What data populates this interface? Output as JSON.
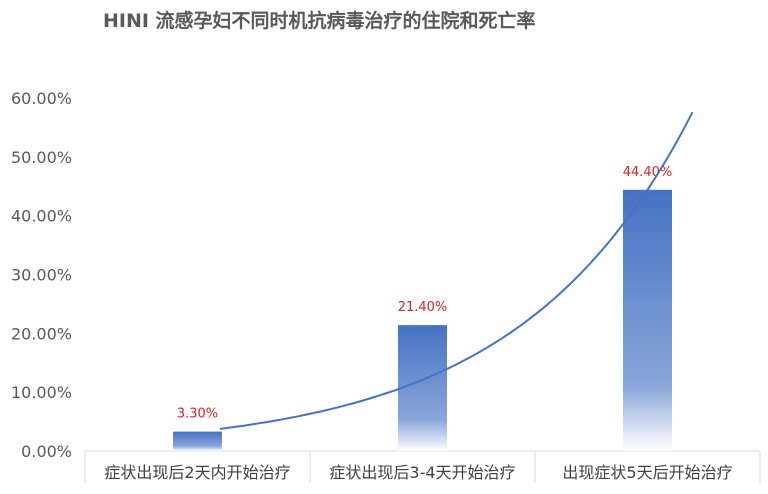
{
  "chart_data": {
    "type": "bar",
    "title": "HINI 流感孕妇不同时机抗病毒治疗的住院和死亡率",
    "categories": [
      "症状出现后2天内开始治疗",
      "症状出现后3-4天开始治疗",
      "出现症状5天后开始治疗"
    ],
    "values": [
      3.3,
      21.4,
      44.4
    ],
    "data_labels": [
      "3.30%",
      "21.40%",
      "44.40%"
    ],
    "ylim": [
      0,
      60
    ],
    "yticks": [
      "0.00%",
      "10.00%",
      "20.00%",
      "30.00%",
      "40.00%",
      "50.00%",
      "60.00%"
    ],
    "grid": false,
    "legend": "none",
    "trendline": {
      "type": "exponential",
      "color": "#4472c4"
    },
    "colors": {
      "bar_top": "#4472c4",
      "bar_bottom": "#ffffff",
      "label": "#e02020",
      "axis": "#d9d9d9"
    }
  }
}
